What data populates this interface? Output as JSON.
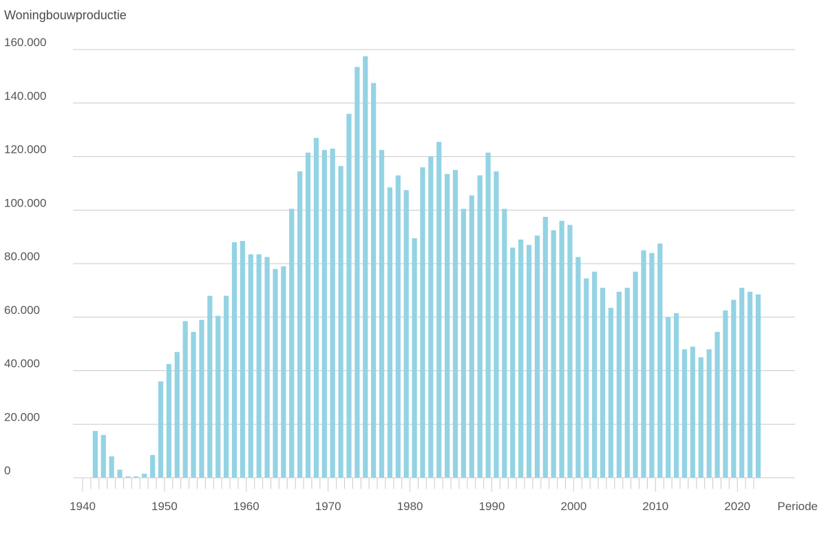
{
  "chart_data": {
    "type": "bar",
    "ylabel": "Woningbouwproductie",
    "xlabel": "Periode",
    "ylim": [
      0,
      160000
    ],
    "yticks": [
      0,
      20000,
      40000,
      60000,
      80000,
      100000,
      120000,
      140000,
      160000
    ],
    "ytick_labels": [
      "0",
      "20.000",
      "40.000",
      "60.000",
      "80.000",
      "100.000",
      "120.000",
      "140.000",
      "160.000"
    ],
    "xlim": [
      1940,
      2022
    ],
    "xticks": [
      1940,
      1950,
      1960,
      1970,
      1980,
      1990,
      2000,
      2010,
      2020
    ],
    "xtick_labels": [
      "1940",
      "1950",
      "1960",
      "1970",
      "1980",
      "1990",
      "2000",
      "2010",
      "2020"
    ],
    "grid": true,
    "bar_color": "#93d3e4",
    "categories": [
      1941,
      1942,
      1943,
      1944,
      1945,
      1946,
      1947,
      1948,
      1949,
      1950,
      1951,
      1952,
      1953,
      1954,
      1955,
      1956,
      1957,
      1958,
      1959,
      1960,
      1961,
      1962,
      1963,
      1964,
      1965,
      1966,
      1967,
      1968,
      1969,
      1970,
      1971,
      1972,
      1973,
      1974,
      1975,
      1976,
      1977,
      1978,
      1979,
      1980,
      1981,
      1982,
      1983,
      1984,
      1985,
      1986,
      1987,
      1988,
      1989,
      1990,
      1991,
      1992,
      1993,
      1994,
      1995,
      1996,
      1997,
      1998,
      1999,
      2000,
      2001,
      2002,
      2003,
      2004,
      2005,
      2006,
      2007,
      2008,
      2009,
      2010,
      2011,
      2012,
      2013,
      2014,
      2015,
      2016,
      2017,
      2018,
      2019,
      2020,
      2021,
      2022
    ],
    "values": [
      17500,
      16000,
      8000,
      3000,
      500,
      500,
      1500,
      8500,
      36000,
      42500,
      47000,
      58500,
      54500,
      59000,
      68000,
      60500,
      68000,
      88000,
      88500,
      83500,
      83500,
      82500,
      78000,
      79000,
      100500,
      114500,
      121500,
      127000,
      122500,
      123000,
      116500,
      136000,
      153500,
      157500,
      147500,
      122500,
      108500,
      113000,
      107500,
      89500,
      116000,
      120000,
      125500,
      113500,
      115000,
      100500,
      105500,
      113000,
      121500,
      114500,
      100500,
      86000,
      89000,
      87000,
      90500,
      97500,
      92500,
      96000,
      94500,
      82500,
      74500,
      77000,
      71000,
      63500,
      69500,
      71000,
      77000,
      85000,
      84000,
      87500,
      60000,
      61500,
      48000,
      49000,
      45000,
      48000,
      54500,
      62500,
      66500,
      71000,
      69500,
      68500
    ]
  }
}
